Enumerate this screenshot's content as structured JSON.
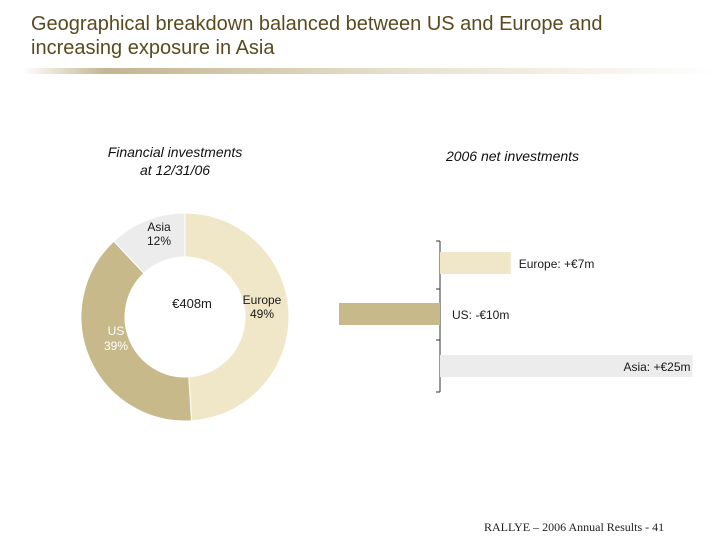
{
  "title": {
    "line1": "Geographical breakdown balanced between US and Europe and",
    "line2": "increasing exposure in Asia"
  },
  "footer": "RALLYE – 2006 Annual Results - 41",
  "chart_data": [
    {
      "type": "pie",
      "title_line1": "Financial investments",
      "title_line2": "at 12/31/06",
      "center_label": "€408m",
      "slices": [
        {
          "name": "Europe",
          "pct_label": "49%",
          "value": 49,
          "color": "#f0e6c8"
        },
        {
          "name": "US",
          "pct_label": "39%",
          "value": 39,
          "color": "#c8b98a"
        },
        {
          "name": "Asia",
          "pct_label": "12%",
          "value": 12,
          "color": "#ececec"
        }
      ]
    },
    {
      "type": "bar",
      "orientation": "horizontal",
      "title": "2006 net investments",
      "categories": [
        "Europe",
        "US",
        "Asia"
      ],
      "values": [
        7,
        -10,
        25
      ],
      "labels": [
        "Europe: +€7m",
        "US: -€10m",
        "Asia: +€25m"
      ],
      "colors": [
        "#f0e6c8",
        "#c8b98a",
        "#ececec"
      ]
    }
  ]
}
